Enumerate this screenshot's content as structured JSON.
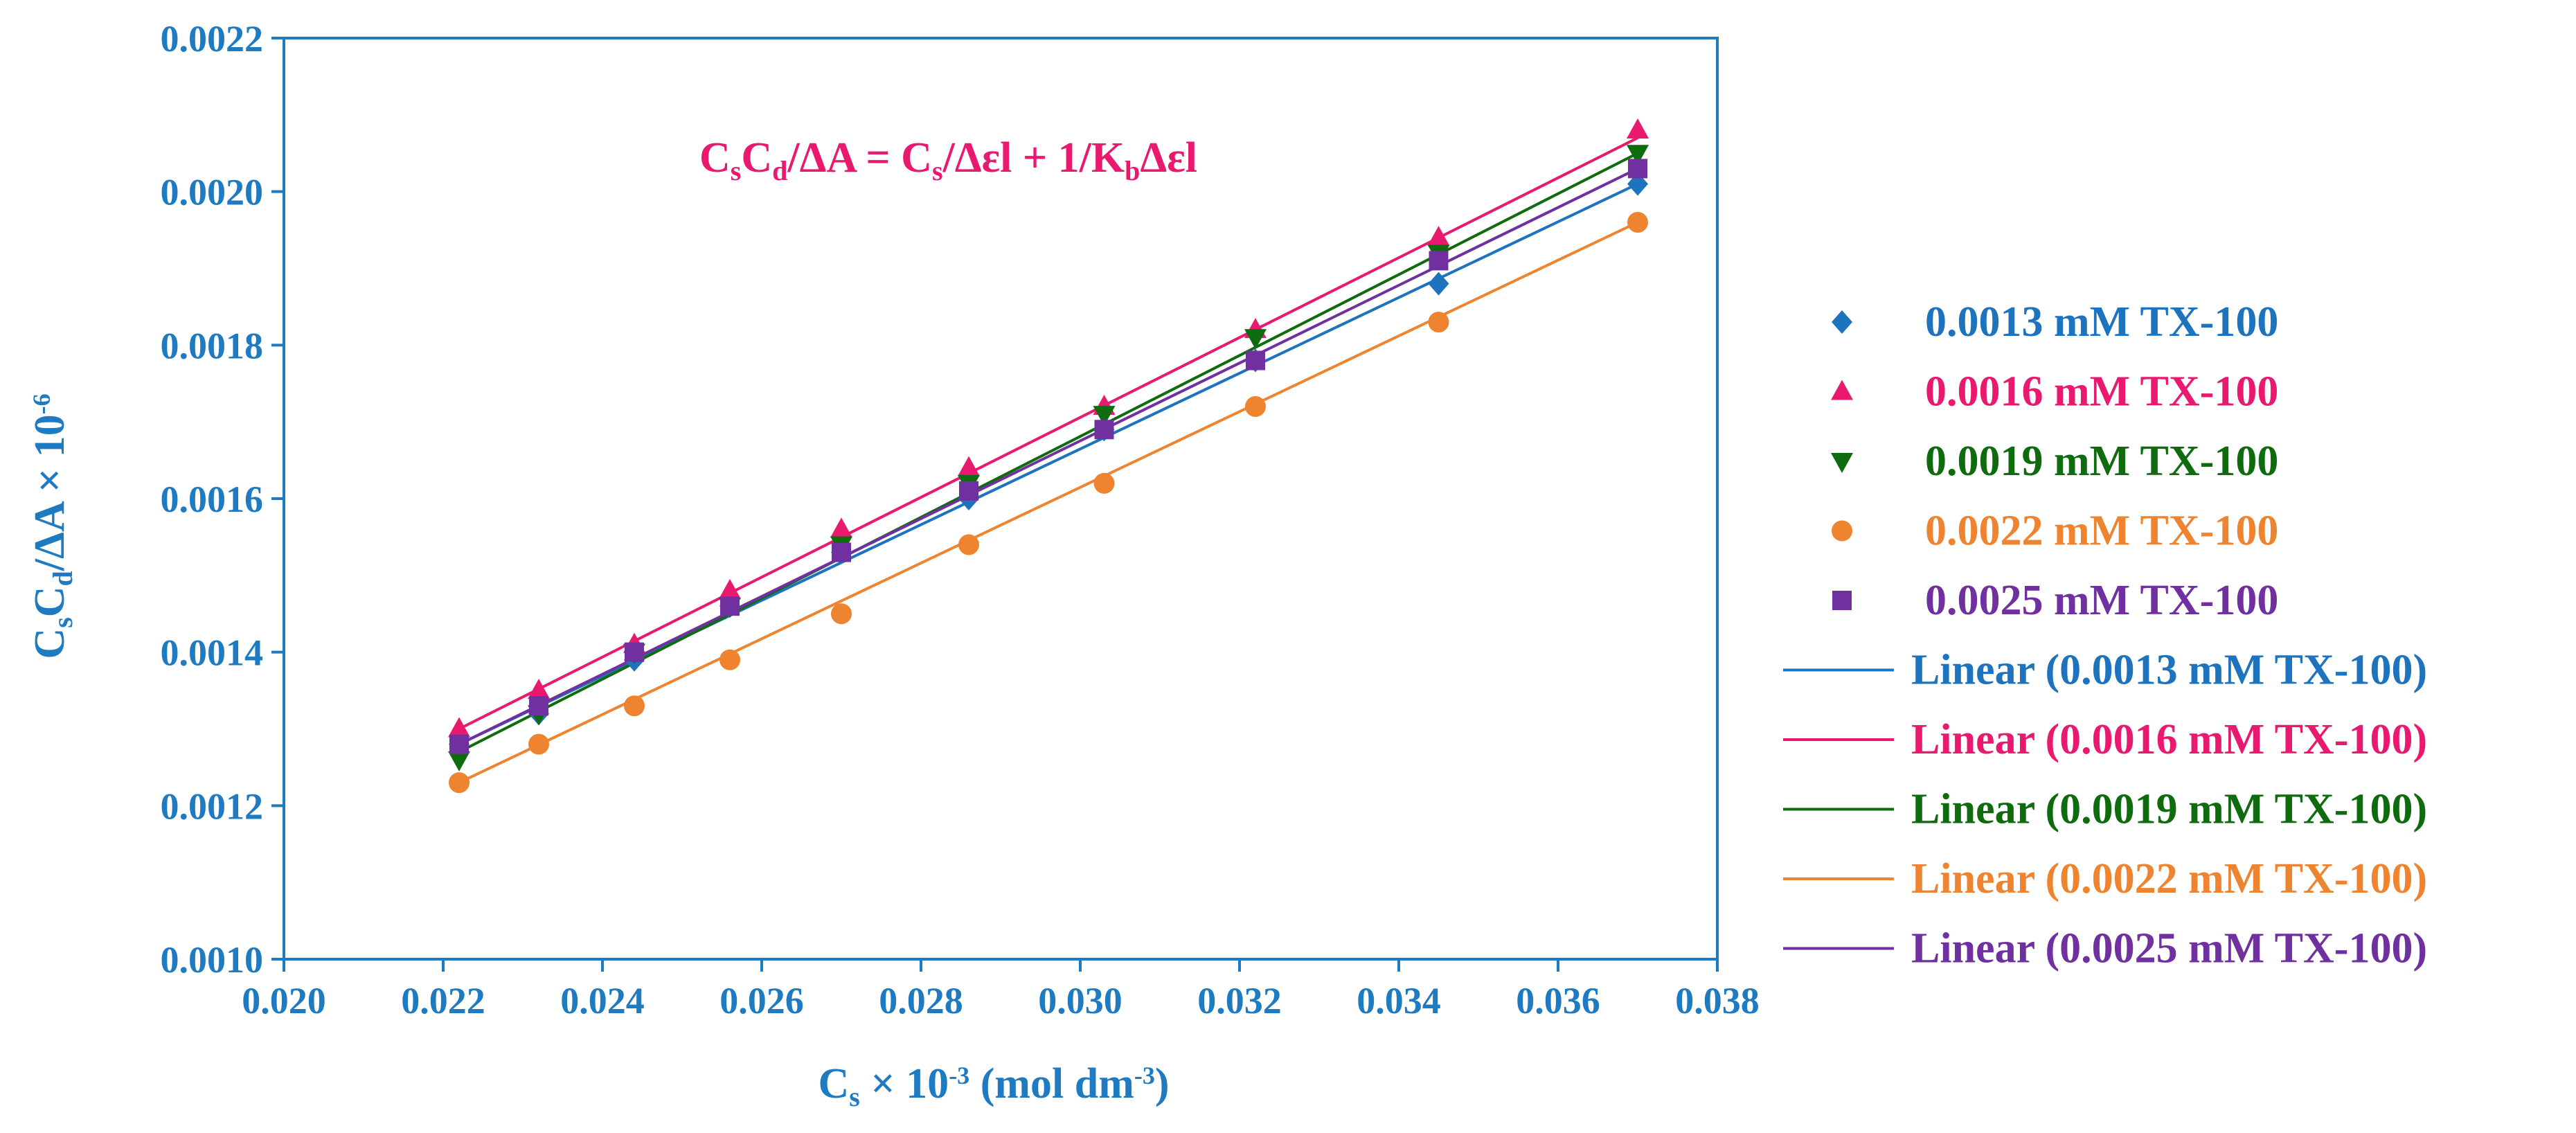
{
  "chart_data": {
    "type": "scatter",
    "equation": {
      "parts": [
        "C",
        "s",
        "C",
        "d",
        "/ΔA = C",
        "s",
        "/Δεl + 1/K",
        "b",
        "Δεl"
      ],
      "color": "#E8196E"
    },
    "xaxis": {
      "min": 0.02,
      "max": 0.038,
      "ticks": [
        "0.020",
        "0.022",
        "0.024",
        "0.026",
        "0.028",
        "0.030",
        "0.032",
        "0.034",
        "0.036",
        "0.038"
      ],
      "title_parts": [
        "C",
        "s",
        " × 10",
        "-3",
        " (mol dm",
        "-3",
        ")"
      ]
    },
    "yaxis": {
      "min": 0.001,
      "max": 0.0022,
      "ticks": [
        "0.0010",
        "0.0012",
        "0.0014",
        "0.0016",
        "0.0018",
        "0.0020",
        "0.0022"
      ],
      "title_parts": [
        "C",
        "s",
        "C",
        "d",
        "/ΔA × 10",
        "-6"
      ]
    },
    "axis_color": "#1F7BC1",
    "x": [
      0.0222,
      0.0232,
      0.0244,
      0.0256,
      0.027,
      0.0286,
      0.0303,
      0.0322,
      0.0345,
      0.037
    ],
    "series": [
      {
        "name": "0.0013 mM TX-100",
        "trend_label": "Linear (0.0013 mM TX-100)",
        "color": "#1E73BE",
        "marker": "diamond",
        "values": [
          0.00128,
          0.00132,
          0.00139,
          0.00146,
          0.00153,
          0.0016,
          0.00169,
          0.00178,
          0.00188,
          0.00201
        ],
        "fit": [
          0.00128,
          0.00201
        ]
      },
      {
        "name": "0.0016 mM TX-100",
        "trend_label": "Linear (0.0016 mM TX-100)",
        "color": "#E8196E",
        "marker": "triangle-up",
        "values": [
          0.0013,
          0.00135,
          0.00141,
          0.00148,
          0.00156,
          0.00164,
          0.00172,
          0.00182,
          0.00194,
          0.00208
        ],
        "fit": [
          0.0013,
          0.00207
        ]
      },
      {
        "name": "0.0019 mM TX-100",
        "trend_label": "Linear (0.0019 mM TX-100)",
        "color": "#0E6B0E",
        "marker": "triangle-down",
        "values": [
          0.00126,
          0.00132,
          0.0014,
          0.00146,
          0.00154,
          0.00162,
          0.00171,
          0.00181,
          0.00192,
          0.00205
        ],
        "fit": [
          0.00127,
          0.00205
        ]
      },
      {
        "name": "0.0022 mM TX-100",
        "trend_label": "Linear (0.0022 mM TX-100)",
        "color": "#EE8430",
        "marker": "circle",
        "values": [
          0.00123,
          0.00128,
          0.00133,
          0.00139,
          0.00145,
          0.00154,
          0.00162,
          0.00172,
          0.00183,
          0.00196
        ],
        "fit": [
          0.00123,
          0.00196
        ]
      },
      {
        "name": "0.0025 mM TX-100",
        "trend_label": "Linear (0.0025 mM TX-100)",
        "color": "#7030A0",
        "marker": "square",
        "values": [
          0.00128,
          0.00133,
          0.0014,
          0.00146,
          0.00153,
          0.00161,
          0.00169,
          0.00178,
          0.00191,
          0.00203
        ],
        "fit": [
          0.00128,
          0.00203
        ]
      }
    ]
  }
}
